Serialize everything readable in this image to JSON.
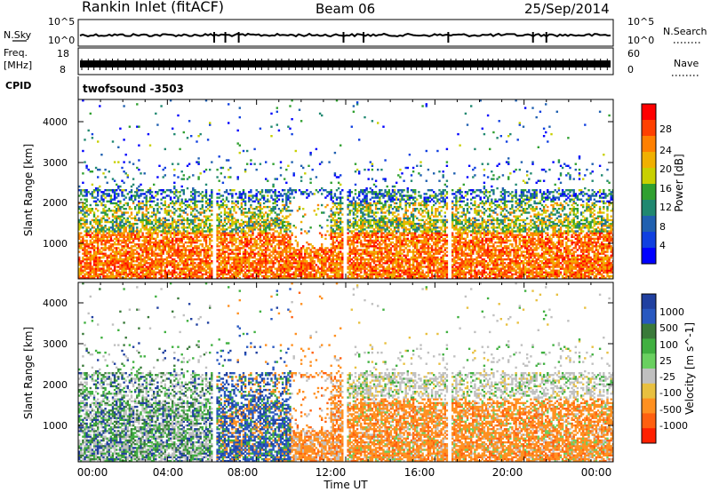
{
  "header": {
    "title": "Rankin Inlet (fitACF)",
    "beam": "Beam 06",
    "date": "25/Sep/2014"
  },
  "params": {
    "nsky_label": "N.Sky",
    "nsky_ticks": [
      "10^5",
      "10^0"
    ],
    "nsearch_label": "N.Search",
    "nsearch_ticks": [
      "10^5",
      "10^0"
    ],
    "freq_label_1": "Freq.",
    "freq_label_2": "[MHz]",
    "freq_ticks": [
      "18",
      "8"
    ],
    "nave_label": "Nave",
    "nave_ticks": [
      "60",
      "0"
    ],
    "cpid_label": "CPID",
    "cpid_value": "twofsound -3503"
  },
  "chart_data": [
    {
      "type": "heatmap",
      "name": "power",
      "ylabel": "Slant Range [km]",
      "yticks": [
        "4000",
        "3000",
        "2000",
        "1000"
      ],
      "xticks": [
        "00:00",
        "04:00",
        "08:00",
        "12:00",
        "16:00",
        "20:00",
        "00:00"
      ],
      "xlabel": "Time UT",
      "ylim": [
        180,
        4500
      ],
      "colorbar": {
        "label": "Power [dB]",
        "ticks": [
          "28",
          "24",
          "20",
          "16",
          "12",
          "8",
          "4"
        ],
        "colors": [
          "#ff0000",
          "#ff4000",
          "#ff8000",
          "#f0b000",
          "#c8d000",
          "#30a030",
          "#208870",
          "#2060b0",
          "#1040e0",
          "#0000ff"
        ]
      },
      "vertical_gaps_hours": [
        6.1,
        11.9,
        16.6
      ]
    },
    {
      "type": "heatmap",
      "name": "velocity",
      "ylabel": "Slant Range [km]",
      "yticks": [
        "4000",
        "3000",
        "2000",
        "1000"
      ],
      "xticks": [
        "00:00",
        "04:00",
        "08:00",
        "12:00",
        "16:00",
        "20:00",
        "00:00"
      ],
      "xlabel": "Time UT",
      "ylim": [
        180,
        4500
      ],
      "colorbar": {
        "label": "Velocity [m s^-1]",
        "ticks": [
          "1000",
          "500",
          "100",
          "25",
          "-25",
          "-100",
          "-500",
          "-1000"
        ],
        "colors": [
          "#2040a0",
          "#2858c0",
          "#3a7a3a",
          "#40b040",
          "#6ad060",
          "#c0c0c0",
          "#e8c040",
          "#ff9020",
          "#ff6010",
          "#ff2000"
        ]
      }
    }
  ]
}
